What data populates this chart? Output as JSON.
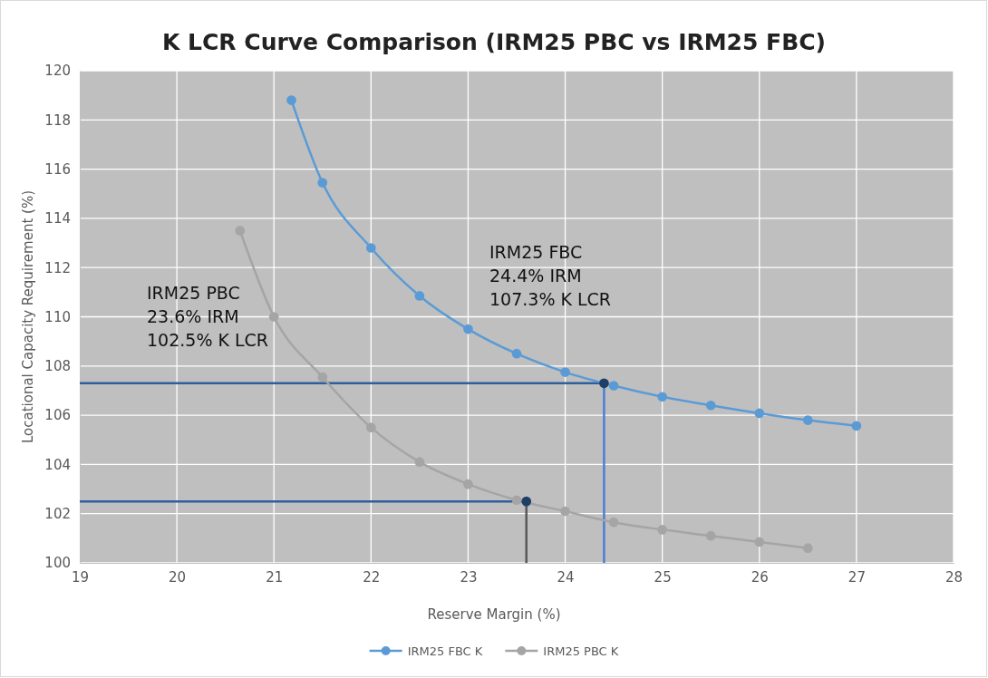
{
  "chart_data": {
    "type": "line",
    "title": "K LCR Curve Comparison (IRM25 PBC vs IRM25 FBC)",
    "xlabel": "Reserve Margin (%)",
    "ylabel": "Locational Capacity Requirement (%)",
    "xlim": [
      19,
      28
    ],
    "xticks": [
      19,
      20,
      21,
      22,
      23,
      24,
      25,
      26,
      27,
      28
    ],
    "ylim": [
      100,
      120
    ],
    "yticks": [
      100,
      102,
      104,
      106,
      108,
      110,
      112,
      114,
      116,
      118,
      120
    ],
    "grid": true,
    "legend": "bottom",
    "marker": "circle",
    "line_style": "solid",
    "series": [
      {
        "name": "IRM25 FBC K",
        "color": "#5b9bd5",
        "x": [
          21.18,
          21.5,
          22,
          22.5,
          23,
          23.5,
          24,
          24.5,
          25,
          25.5,
          26,
          26.5,
          27
        ],
        "values": [
          118.8,
          115.45,
          112.8,
          110.85,
          109.5,
          108.5,
          107.75,
          107.2,
          106.75,
          106.4,
          106.08,
          105.8,
          105.57
        ]
      },
      {
        "name": "IRM25 PBC K",
        "color": "#a5a5a5",
        "x": [
          20.65,
          21,
          21.5,
          22,
          22.5,
          23,
          23.5,
          24,
          24.5,
          25,
          25.5,
          26,
          26.5
        ],
        "values": [
          113.5,
          110,
          107.55,
          105.5,
          104.1,
          103.2,
          102.55,
          102.1,
          101.65,
          101.35,
          101.1,
          100.85,
          100.6
        ]
      },
      {
        "color": "#2e5e9e",
        "marker": "none",
        "x": [
          19,
          24.4
        ],
        "values": [
          107.3,
          107.3
        ]
      },
      {
        "color": "#4a7fd6",
        "marker": "none",
        "x": [
          24.4,
          24.4
        ],
        "values": [
          100,
          107.3
        ]
      },
      {
        "color": "#2e5e9e",
        "marker": "none",
        "x": [
          19,
          23.6
        ],
        "values": [
          102.5,
          102.5
        ]
      },
      {
        "color": "#595959",
        "marker": "none",
        "x": [
          23.6,
          23.6
        ],
        "values": [
          100,
          102.5
        ]
      },
      {
        "type": "scatter",
        "color": "#1f3f66",
        "x": [
          24.4,
          23.6
        ],
        "values": [
          107.3,
          102.5
        ]
      }
    ],
    "annotations": [
      "IRM25 FBC\n24.4% IRM\n107.3% K LCR",
      "IRM25 PBC\n23.6% IRM\n102.5% K LCR"
    ]
  }
}
